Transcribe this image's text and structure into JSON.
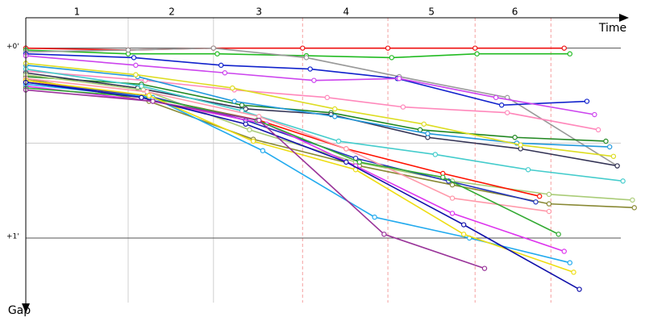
{
  "chart_data": {
    "type": "line",
    "x_label": "Time",
    "y_label": "Gap",
    "xlim": [
      0,
      3.16
    ],
    "ylim": [
      -0.16,
      1.34
    ],
    "xticks": [
      {
        "value": 0.27,
        "label": "1"
      },
      {
        "value": 0.77,
        "label": "2"
      },
      {
        "value": 1.23,
        "label": "3"
      },
      {
        "value": 1.69,
        "label": "4"
      },
      {
        "value": 2.14,
        "label": "5"
      },
      {
        "value": 2.58,
        "label": "6"
      }
    ],
    "xgrid": [
      0.54,
      0.99,
      1.46,
      1.91,
      2.37,
      2.77
    ],
    "yticks": [
      {
        "value": 0,
        "label": "+0'"
      },
      {
        "value": 1,
        "label": "+1'"
      }
    ],
    "ygrid": [
      0,
      0.5,
      1
    ],
    "series": [
      {
        "color": "#ee1111",
        "x": [
          0,
          0.54,
          0.99,
          1.46,
          1.91,
          2.37,
          2.84
        ],
        "values": [
          0,
          0.01,
          0,
          0,
          0,
          0,
          0
        ]
      },
      {
        "color": "#22bb22",
        "x": [
          0,
          0.54,
          1.01,
          1.48,
          1.93,
          2.38,
          2.87
        ],
        "values": [
          0.01,
          0.03,
          0.03,
          0.04,
          0.05,
          0.03,
          0.03
        ]
      },
      {
        "color": "#999999",
        "x": [
          0,
          0.54,
          0.99,
          1.48,
          1.97,
          2.54,
          3.12
        ],
        "values": [
          0.02,
          0.01,
          0,
          0.05,
          0.15,
          0.26,
          0.62
        ]
      },
      {
        "color": "#1122cc",
        "x": [
          0,
          0.57,
          1.03,
          1.5,
          1.96,
          2.51,
          2.96
        ],
        "values": [
          0.03,
          0.05,
          0.09,
          0.11,
          0.16,
          0.3,
          0.28
        ]
      },
      {
        "color": "#cc44ee",
        "x": [
          0,
          0.58,
          1.05,
          1.52,
          1.97,
          2.48,
          3.0
        ],
        "values": [
          0.04,
          0.09,
          0.13,
          0.17,
          0.16,
          0.26,
          0.35
        ]
      },
      {
        "color": "#ff88bb",
        "x": [
          0,
          0.63,
          1.1,
          1.59,
          1.99,
          2.54,
          3.02
        ],
        "values": [
          0.12,
          0.17,
          0.22,
          0.26,
          0.31,
          0.34,
          0.43
        ]
      },
      {
        "color": "#228822",
        "x": [
          0,
          0.61,
          1.14,
          1.61,
          2.08,
          2.58,
          3.06
        ],
        "values": [
          0.15,
          0.19,
          0.3,
          0.34,
          0.43,
          0.47,
          0.49
        ]
      },
      {
        "color": "#333355",
        "x": [
          0,
          0.59,
          1.16,
          1.61,
          2.12,
          2.61,
          3.12
        ],
        "values": [
          0.13,
          0.21,
          0.32,
          0.35,
          0.47,
          0.53,
          0.62
        ]
      },
      {
        "color": "#2299dd",
        "x": [
          0,
          0.59,
          1.1,
          1.63,
          2.12,
          2.59,
          3.08
        ],
        "values": [
          0.09,
          0.15,
          0.28,
          0.36,
          0.45,
          0.5,
          0.52
        ]
      },
      {
        "color": "#dddd22",
        "x": [
          0,
          0.58,
          1.09,
          1.63,
          2.1,
          2.61,
          3.1
        ],
        "values": [
          0.08,
          0.14,
          0.21,
          0.32,
          0.4,
          0.51,
          0.57
        ]
      },
      {
        "color": "#44cccc",
        "x": [
          0,
          0.61,
          1.14,
          1.65,
          2.16,
          2.65,
          3.15
        ],
        "values": [
          0.11,
          0.2,
          0.33,
          0.49,
          0.56,
          0.64,
          0.7
        ]
      },
      {
        "color": "#aacc77",
        "x": [
          0,
          0.62,
          1.18,
          1.74,
          2.25,
          2.76,
          3.2
        ],
        "values": [
          0.14,
          0.22,
          0.43,
          0.6,
          0.7,
          0.77,
          0.8
        ]
      },
      {
        "color": "#888833",
        "x": [
          0,
          0.65,
          1.2,
          1.76,
          2.25,
          2.76,
          3.21
        ],
        "values": [
          0.16,
          0.28,
          0.48,
          0.62,
          0.72,
          0.82,
          0.84
        ]
      },
      {
        "color": "#ff1100",
        "x": [
          0,
          0.65,
          1.23,
          1.69,
          2.2,
          2.71
        ],
        "values": [
          0.17,
          0.26,
          0.38,
          0.53,
          0.66,
          0.78
        ]
      },
      {
        "color": "#2233bb",
        "x": [
          0,
          0.64,
          1.16,
          1.74,
          2.23,
          2.69
        ],
        "values": [
          0.18,
          0.25,
          0.38,
          0.58,
          0.7,
          0.81
        ]
      },
      {
        "color": "#ff99aa",
        "x": [
          0,
          0.64,
          1.23,
          1.69,
          2.25,
          2.76
        ],
        "values": [
          0.16,
          0.23,
          0.36,
          0.53,
          0.79,
          0.86
        ]
      },
      {
        "color": "#dd33ee",
        "x": [
          0,
          0.67,
          1.27,
          1.74,
          2.25,
          2.84
        ],
        "values": [
          0.2,
          0.28,
          0.4,
          0.62,
          0.87,
          1.07
        ]
      },
      {
        "color": "#33aa33",
        "x": [
          0,
          0.65,
          1.22,
          1.76,
          2.2,
          2.81
        ],
        "values": [
          0.21,
          0.26,
          0.38,
          0.6,
          0.68,
          0.98
        ]
      },
      {
        "color": "#22aaee",
        "x": [
          0,
          0.67,
          1.25,
          1.84,
          2.34,
          2.87
        ],
        "values": [
          0.19,
          0.26,
          0.54,
          0.89,
          1.0,
          1.13
        ]
      },
      {
        "color": "#eedd11",
        "x": [
          0,
          0.65,
          1.2,
          1.74,
          2.31,
          2.89
        ],
        "values": [
          0.17,
          0.25,
          0.49,
          0.64,
          0.98,
          1.18
        ]
      },
      {
        "color": "#1111aa",
        "x": [
          0,
          0.61,
          1.16,
          1.69,
          2.31,
          2.92
        ],
        "values": [
          0.18,
          0.26,
          0.4,
          0.6,
          0.93,
          1.27
        ]
      },
      {
        "color": "#993399",
        "x": [
          0,
          0.67,
          1.23,
          1.89,
          2.42
        ],
        "values": [
          0.22,
          0.28,
          0.38,
          0.98,
          1.16
        ]
      }
    ]
  }
}
